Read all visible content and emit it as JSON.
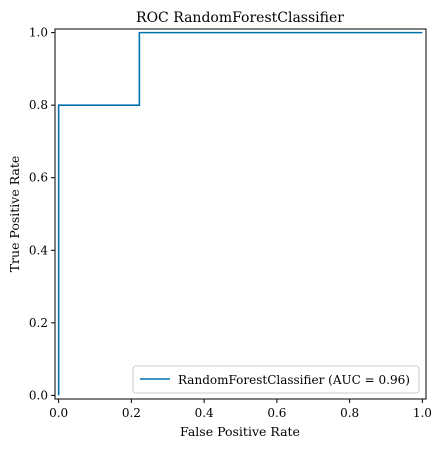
{
  "chart_data": {
    "type": "line",
    "title": "ROC RandomForestClassifier",
    "xlabel": "False Positive Rate",
    "ylabel": "True Positive Rate",
    "xlim": [
      -0.01,
      1.01
    ],
    "ylim": [
      -0.01,
      1.01
    ],
    "xticks": [
      0.0,
      0.2,
      0.4,
      0.6,
      0.8,
      1.0
    ],
    "yticks": [
      0.0,
      0.2,
      0.4,
      0.6,
      0.8,
      1.0
    ],
    "xtick_labels": [
      "0.0",
      "0.2",
      "0.4",
      "0.6",
      "0.8",
      "1.0"
    ],
    "ytick_labels": [
      "0.0",
      "0.2",
      "0.4",
      "0.6",
      "0.8",
      "1.0"
    ],
    "grid": false,
    "legend_position": "lower-right",
    "series": [
      {
        "name": "RandomForestClassifier (AUC = 0.96)",
        "color": "#0072B2",
        "drawstyle": "steps",
        "x": [
          0.0,
          0.0,
          0.0,
          0.222,
          0.222,
          1.0
        ],
        "y": [
          0.0,
          0.0,
          0.8,
          0.8,
          1.0,
          1.0
        ]
      }
    ]
  }
}
